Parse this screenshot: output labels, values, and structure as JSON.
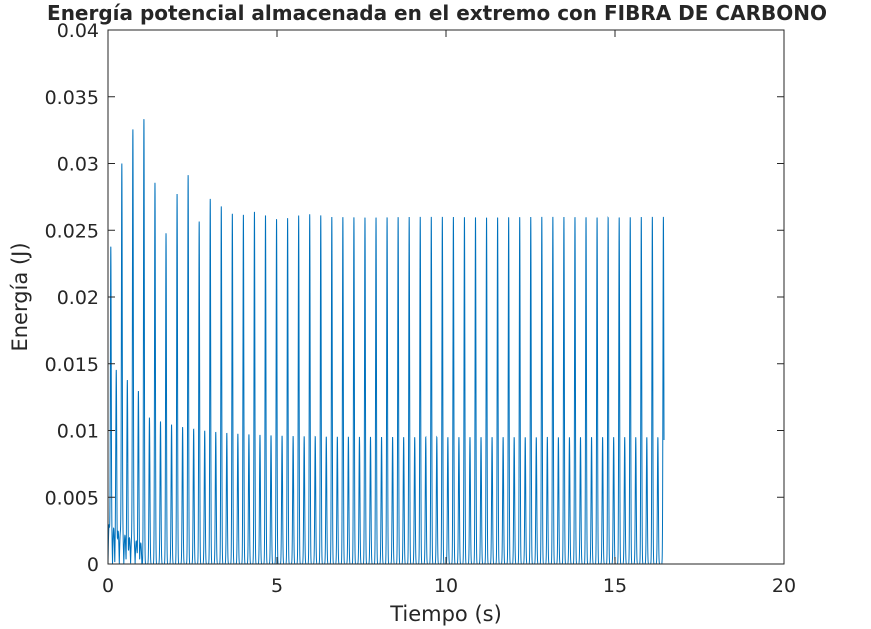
{
  "chart_data": {
    "type": "line",
    "title": "Energía potencial almacenada en el extremo con FIBRA DE CARBONO",
    "xlabel": "Tiempo (s)",
    "ylabel": "Energía (J)",
    "xlim": [
      0,
      20
    ],
    "ylim": [
      0,
      0.04
    ],
    "xticks": [
      0,
      5,
      10,
      15,
      20
    ],
    "xtick_labels": [
      "0",
      "5",
      "10",
      "15",
      "20"
    ],
    "yticks": [
      0,
      0.005,
      0.01,
      0.015,
      0.02,
      0.025,
      0.03,
      0.035,
      0.04
    ],
    "ytick_labels": [
      "0",
      "0.005",
      "0.01",
      "0.015",
      "0.02",
      "0.025",
      "0.03",
      "0.035",
      "0.04"
    ],
    "grid": false,
    "box": true,
    "series": [
      {
        "color": "#0072BD",
        "x_end": 16.45,
        "oscillation_period_s": 0.327,
        "major_peaks": [
          [
            0.03,
            0.0185
          ],
          [
            0.24,
            0.0322
          ],
          [
            0.53,
            0.027
          ],
          [
            0.86,
            0.0358
          ],
          [
            1.22,
            0.0315
          ],
          [
            1.54,
            0.026
          ],
          [
            1.86,
            0.0238
          ],
          [
            2.15,
            0.03
          ],
          [
            2.48,
            0.0287
          ],
          [
            2.78,
            0.0245
          ],
          [
            3.08,
            0.028
          ],
          [
            3.42,
            0.0265
          ],
          [
            3.75,
            0.0262
          ],
          [
            4.08,
            0.0262
          ],
          [
            4.45,
            0.0265
          ],
          [
            4.75,
            0.026
          ],
          [
            5.09,
            0.0258
          ],
          [
            5.45,
            0.026
          ],
          [
            5.8,
            0.0262
          ],
          [
            6.15,
            0.0262
          ],
          [
            6.5,
            0.026
          ],
          [
            16.4,
            0.026
          ]
        ],
        "steady_major_peak": 0.026,
        "steady_minor_peak": 0.0095,
        "minimum": 0
      }
    ]
  }
}
